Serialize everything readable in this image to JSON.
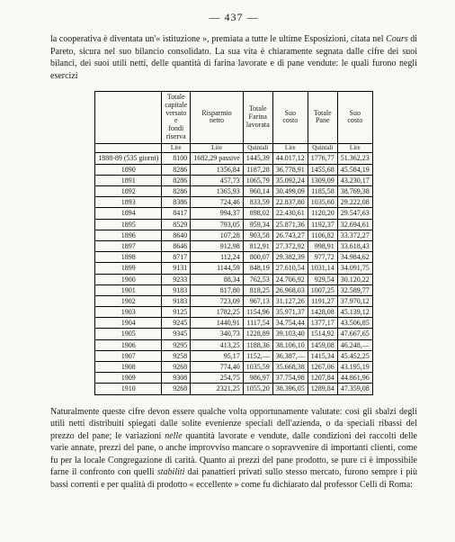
{
  "page_number": "— 437 —",
  "intro": "la cooperativa è diventata un'« istituzione », premiata a tutte le ultime Esposizioni, citata nel <span class=\"italic\">Cours</span> di Pareto, sicura nel suo bilancio consolidato. La sua vita è chiaramente segnata dalle cifre dei suoi bilanci, dei suoi utili netti, delle quantità di farina lavorate e di pane vendute: le quali furono negli esercizi",
  "outro": "Naturalmente queste cifre devon essere qualche volta opportunamente valutate: così gli sbalzi degli utili netti distribuiti spiegati dalle solite evenienze speciali dell'azienda, o da speciali ribassi del prezzo del pane; le variazioni <span class=\"italic\">nelle</span> quantità lavorate e vendute, dalle condizioni dei raccolti delle varie annate, prezzi del pane, o anche improvviso mancare o sopravvenire di importanti clienti, come fu per la locale Congregazione di carità. Quanto ai prezzi del pane prodotto, se pure ci è impossibile farne il confronto con quelli <span class=\"italic\">stabiliti</span> dai panattieri privati sullo stesso mercato, furono sempre i più bassi correnti e per qualità di prodotto « eccellente » come fu dichiarato dal professor Celli di Roma:",
  "table": {
    "headers": [
      "",
      "Totale capitale versato e fondi riserva",
      "Risparmio netto",
      "Totale Farina lavorata",
      "Suo costo",
      "Totale Pane",
      "Suo costo"
    ],
    "units": [
      "",
      "Lire",
      "Lire",
      "Quintali",
      "Lire",
      "Quintali",
      "Lire"
    ],
    "rows": [
      [
        "1888-89 (535 giorni)",
        "8100",
        "1682,29 passive",
        "1445,39",
        "44.017,12",
        "1776,77",
        "51.362,23"
      ],
      [
        "1890",
        "8286",
        "1356,84",
        "1187,28",
        "36.778,91",
        "1455,68",
        "45.584,19"
      ],
      [
        "1891",
        "8286",
        "457,73",
        "1065,79",
        "35.092,24",
        "1309,09",
        "43.230,17"
      ],
      [
        "1892",
        "8286",
        "1365,93",
        "960,14",
        "30.499,09",
        "1185,58",
        "38.769,38"
      ],
      [
        "1893",
        "8386",
        "724,46",
        "833,59",
        "22.837,80",
        "1035,60",
        "29.222,08"
      ],
      [
        "1894",
        "8417",
        "994,37",
        "898,02",
        "22.430,61",
        "1120,20",
        "29.547,63"
      ],
      [
        "1895",
        "8529",
        "793,05",
        "959,34",
        "25.871,36",
        "1192,37",
        "32.694,61"
      ],
      [
        "1896",
        "8640",
        "107,28",
        "903,58",
        "26.743,27",
        "1106,82",
        "33.372,27"
      ],
      [
        "1897",
        "8646",
        "912,98",
        "812,91",
        "27.372,92",
        "998,91",
        "33.618,43"
      ],
      [
        "1898",
        "8717",
        "112,24",
        "800,07",
        "29.382,39",
        "977,72",
        "34.984,62"
      ],
      [
        "1899",
        "9131",
        "1144,59",
        "848,19",
        "27.610,54",
        "1031,14",
        "34.091,75"
      ],
      [
        "1900",
        "9233",
        "88,34",
        "762,53",
        "24.706,92",
        "929,54",
        "30.120,22"
      ],
      [
        "1901",
        "9183",
        "817,80",
        "818,25",
        "26.968,03",
        "1007,25",
        "32.589,77"
      ],
      [
        "1902",
        "9183",
        "723,09",
        "967,13",
        "31.127,26",
        "1191,27",
        "37.970,12"
      ],
      [
        "1903",
        "9125",
        "1782,25",
        "1154,96",
        "35.971,37",
        "1428,08",
        "45.139,12"
      ],
      [
        "1904",
        "9245",
        "1440,91",
        "1117,54",
        "34.754,44",
        "1377,17",
        "43.506,85"
      ],
      [
        "1905",
        "9345",
        "340,73",
        "1228,89",
        "39.103,40",
        "1514,92",
        "47.667,65"
      ],
      [
        "1906",
        "9295",
        "413,25",
        "1188,36",
        "38.106,10",
        "1459,08",
        "46.248,—"
      ],
      [
        "1907",
        "9258",
        "95,17",
        "1152,—",
        "36.387,—",
        "1415,34",
        "45.452,25"
      ],
      [
        "1908",
        "9268",
        "774,40",
        "1035,59",
        "35.668,38",
        "1267,06",
        "43.195,19"
      ],
      [
        "1909",
        "9308",
        "254,75",
        "986,97",
        "37.754,98",
        "1207,84",
        "44.861,96"
      ],
      [
        "1910",
        "9268",
        "2321,25",
        "1055,20",
        "38.396,05",
        "1289,84",
        "47.359,08"
      ]
    ]
  }
}
